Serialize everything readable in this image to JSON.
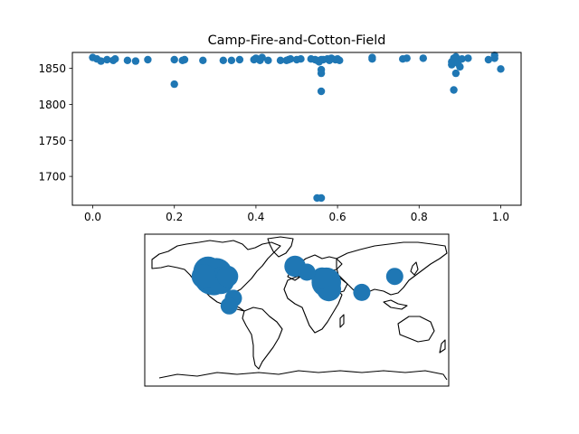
{
  "chart_data": [
    {
      "type": "scatter",
      "title": "Camp-Fire-and-Cotton-Field",
      "xlabel": "",
      "ylabel": "",
      "xlim": [
        -0.05,
        1.05
      ],
      "ylim": [
        1660,
        1872
      ],
      "xticks": [
        0.0,
        0.2,
        0.4,
        0.6,
        0.8,
        1.0
      ],
      "xtick_labels": [
        "0.0",
        "0.2",
        "0.4",
        "0.6",
        "0.8",
        "1.0"
      ],
      "yticks": [
        1700,
        1750,
        1800,
        1850
      ],
      "ytick_labels": [
        "1700",
        "1750",
        "1800",
        "1850"
      ],
      "grid": false,
      "color": "#1f77b4",
      "points": [
        [
          0.0,
          1865
        ],
        [
          0.01,
          1863
        ],
        [
          0.02,
          1860
        ],
        [
          0.035,
          1862
        ],
        [
          0.05,
          1861
        ],
        [
          0.055,
          1863
        ],
        [
          0.085,
          1861
        ],
        [
          0.105,
          1860
        ],
        [
          0.135,
          1862
        ],
        [
          0.2,
          1828
        ],
        [
          0.2,
          1862
        ],
        [
          0.22,
          1861
        ],
        [
          0.225,
          1862
        ],
        [
          0.27,
          1861
        ],
        [
          0.32,
          1861
        ],
        [
          0.34,
          1861
        ],
        [
          0.36,
          1862
        ],
        [
          0.395,
          1862
        ],
        [
          0.4,
          1864
        ],
        [
          0.41,
          1861
        ],
        [
          0.415,
          1865
        ],
        [
          0.43,
          1861
        ],
        [
          0.46,
          1861
        ],
        [
          0.475,
          1861
        ],
        [
          0.48,
          1862
        ],
        [
          0.485,
          1863
        ],
        [
          0.5,
          1862
        ],
        [
          0.51,
          1863
        ],
        [
          0.535,
          1863
        ],
        [
          0.545,
          1862
        ],
        [
          0.55,
          1861
        ],
        [
          0.555,
          1859
        ],
        [
          0.56,
          1862
        ],
        [
          0.56,
          1848
        ],
        [
          0.56,
          1843
        ],
        [
          0.56,
          1818
        ],
        [
          0.55,
          1670
        ],
        [
          0.56,
          1670
        ],
        [
          0.565,
          1862
        ],
        [
          0.575,
          1863
        ],
        [
          0.58,
          1861
        ],
        [
          0.585,
          1864
        ],
        [
          0.595,
          1862
        ],
        [
          0.6,
          1863
        ],
        [
          0.605,
          1861
        ],
        [
          0.685,
          1863
        ],
        [
          0.685,
          1865
        ],
        [
          0.76,
          1863
        ],
        [
          0.77,
          1864
        ],
        [
          0.81,
          1864
        ],
        [
          0.88,
          1855
        ],
        [
          0.88,
          1859
        ],
        [
          0.885,
          1864
        ],
        [
          0.885,
          1820
        ],
        [
          0.89,
          1866
        ],
        [
          0.89,
          1843
        ],
        [
          0.895,
          1857
        ],
        [
          0.9,
          1852
        ],
        [
          0.905,
          1863
        ],
        [
          0.92,
          1864
        ],
        [
          0.97,
          1862
        ],
        [
          0.985,
          1864
        ],
        [
          0.985,
          1868
        ],
        [
          1.0,
          1849
        ]
      ]
    },
    {
      "type": "scatter",
      "title": "",
      "xlabel": "",
      "ylabel": "",
      "projection": "equirectangular",
      "lon_range": [
        -180,
        180
      ],
      "lat_range": [
        -90,
        90
      ],
      "coastlines": true,
      "color": "#1f77b4",
      "points": [
        {
          "lon": -100,
          "lat": 40,
          "value": 9
        },
        {
          "lon": -95,
          "lat": 43,
          "value": 6
        },
        {
          "lon": -105,
          "lat": 46,
          "value": 5
        },
        {
          "lon": -90,
          "lat": 35,
          "value": 4
        },
        {
          "lon": -98,
          "lat": 32,
          "value": 3
        },
        {
          "lon": -110,
          "lat": 40,
          "value": 3
        },
        {
          "lon": -82,
          "lat": 40,
          "value": 2
        },
        {
          "lon": -75,
          "lat": 14,
          "value": 1
        },
        {
          "lon": -80,
          "lat": 5,
          "value": 1
        },
        {
          "lon": -2,
          "lat": 52,
          "value": 2
        },
        {
          "lon": 12,
          "lat": 45,
          "value": 1
        },
        {
          "lon": 35,
          "lat": 33,
          "value": 5
        },
        {
          "lon": 38,
          "lat": 25,
          "value": 3
        },
        {
          "lon": 30,
          "lat": 38,
          "value": 2
        },
        {
          "lon": 77,
          "lat": 21,
          "value": 1
        },
        {
          "lon": 116,
          "lat": 40,
          "value": 1
        }
      ]
    }
  ]
}
